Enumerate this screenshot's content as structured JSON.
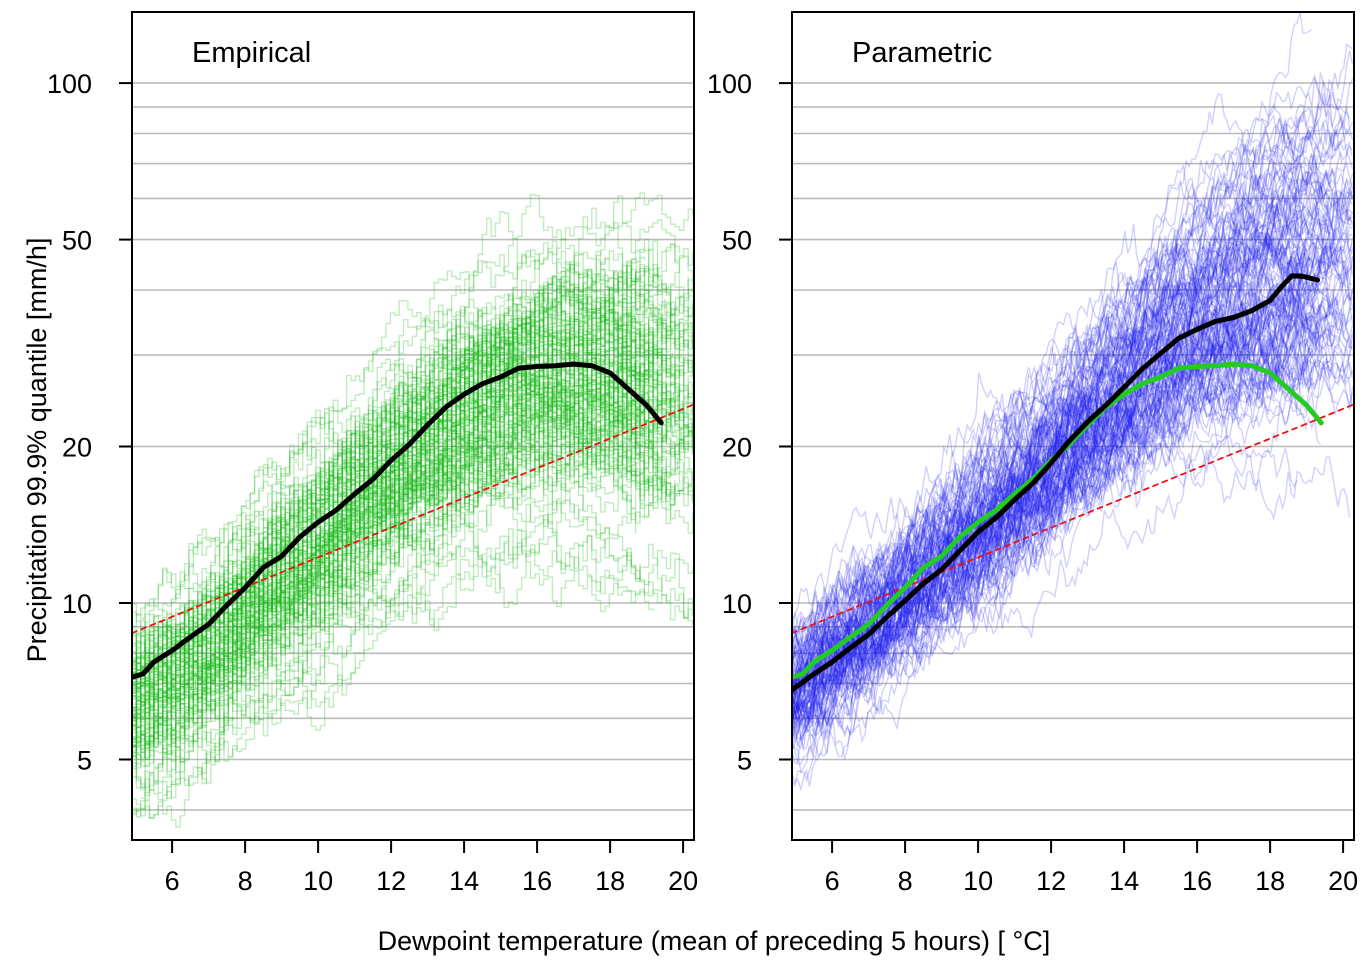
{
  "figure": {
    "xlabel": "Dewpoint temperature (mean of preceding 5 hours)  [ °C]",
    "ylabel": "Precipitation  99.9% quantile  [mm/h]"
  },
  "colors": {
    "empirical_ensemble": "#22bb22",
    "parametric_ensemble": "#1a1aee",
    "observed": "#000000",
    "empirical_overlay": "#22cc22",
    "reference": "#ee1111",
    "grid": "#bbbbbb"
  },
  "chart_data": [
    {
      "type": "line",
      "title": "Empirical",
      "xlim": [
        4.9,
        20.3
      ],
      "ylim": [
        3.5,
        137
      ],
      "yscale": "log",
      "x_ticks": [
        6,
        8,
        10,
        12,
        14,
        16,
        18,
        20
      ],
      "y_ticks": [
        5,
        10,
        20,
        50,
        100
      ],
      "y_gridlines": [
        4,
        5,
        6,
        7,
        8,
        9,
        10,
        20,
        30,
        40,
        50,
        60,
        70,
        80,
        90,
        100
      ],
      "series": [
        {
          "name": "observed",
          "color": "#000000",
          "x": [
            4.9,
            5.2,
            5.5,
            6.0,
            6.5,
            7.0,
            7.5,
            8.0,
            8.5,
            9.0,
            9.5,
            10.0,
            10.5,
            11.0,
            11.5,
            12.0,
            12.5,
            13.0,
            13.5,
            14.0,
            14.5,
            15.0,
            15.5,
            16.0,
            16.5,
            17.0,
            17.5,
            18.0,
            18.5,
            19.0,
            19.4
          ],
          "y": [
            7.2,
            7.3,
            7.7,
            8.1,
            8.6,
            9.1,
            9.9,
            10.7,
            11.7,
            12.3,
            13.4,
            14.3,
            15.1,
            16.2,
            17.3,
            18.8,
            20.2,
            22.0,
            23.8,
            25.2,
            26.4,
            27.2,
            28.3,
            28.5,
            28.6,
            28.8,
            28.6,
            27.7,
            25.8,
            24.0,
            22.2
          ]
        },
        {
          "name": "reference",
          "color": "#ee1111",
          "style": "dashed",
          "x": [
            4.9,
            20.3
          ],
          "y": [
            8.75,
            24.1
          ]
        },
        {
          "name": "ensemble",
          "color": "#22bb22",
          "members": 140,
          "x": [
            4.9,
            6.0,
            7.0,
            8.0,
            9.0,
            10.0,
            11.0,
            12.0,
            13.0,
            14.0,
            15.0,
            16.0,
            17.0,
            18.0,
            19.0,
            20.3
          ],
          "y_median": [
            6.3,
            7.0,
            8.0,
            9.4,
            10.9,
            12.6,
            14.8,
            17.2,
            19.8,
            22.5,
            24.6,
            26.0,
            26.5,
            26.0,
            25.0,
            24.0
          ],
          "spread_log_sd": [
            0.16,
            0.16,
            0.17,
            0.18,
            0.19,
            0.2,
            0.21,
            0.22,
            0.23,
            0.25,
            0.26,
            0.27,
            0.28,
            0.3,
            0.32,
            0.34
          ]
        }
      ]
    },
    {
      "type": "line",
      "title": "Parametric",
      "xlim": [
        4.9,
        20.3
      ],
      "ylim": [
        3.5,
        137
      ],
      "yscale": "log",
      "x_ticks": [
        6,
        8,
        10,
        12,
        14,
        16,
        18,
        20
      ],
      "y_ticks": [
        5,
        10,
        20,
        50,
        100
      ],
      "y_gridlines": [
        4,
        5,
        6,
        7,
        8,
        9,
        10,
        20,
        30,
        40,
        50,
        60,
        70,
        80,
        90,
        100
      ],
      "series": [
        {
          "name": "observed",
          "color": "#000000",
          "x": [
            4.9,
            5.5,
            6.0,
            6.5,
            7.0,
            7.5,
            8.0,
            8.5,
            9.0,
            9.5,
            10.0,
            10.5,
            11.0,
            11.5,
            12.0,
            12.5,
            13.0,
            13.5,
            14.0,
            14.5,
            15.0,
            15.5,
            16.0,
            16.5,
            17.0,
            17.5,
            18.0,
            18.3,
            18.6,
            18.9,
            19.3
          ],
          "y": [
            6.8,
            7.3,
            7.7,
            8.2,
            8.7,
            9.4,
            10.1,
            10.9,
            11.6,
            12.6,
            13.7,
            14.6,
            15.8,
            17.0,
            18.6,
            20.5,
            22.3,
            24.0,
            26.0,
            28.2,
            30.2,
            32.3,
            33.6,
            34.8,
            35.4,
            36.5,
            38.2,
            40.5,
            42.6,
            42.5,
            41.8
          ]
        },
        {
          "name": "empirical",
          "color": "#22cc22",
          "x": [
            4.9,
            5.2,
            5.5,
            6.0,
            6.5,
            7.0,
            7.5,
            8.0,
            8.5,
            9.0,
            9.5,
            10.0,
            10.5,
            11.0,
            11.5,
            12.0,
            12.5,
            13.0,
            13.5,
            14.0,
            14.5,
            15.0,
            15.5,
            16.0,
            16.5,
            17.0,
            17.5,
            18.0,
            18.5,
            19.0,
            19.4
          ],
          "y": [
            7.2,
            7.3,
            7.7,
            8.1,
            8.6,
            9.1,
            9.9,
            10.7,
            11.7,
            12.3,
            13.4,
            14.3,
            15.1,
            16.2,
            17.3,
            18.8,
            20.2,
            22.0,
            23.8,
            25.2,
            26.4,
            27.2,
            28.3,
            28.5,
            28.6,
            28.8,
            28.6,
            27.7,
            25.8,
            24.0,
            22.2
          ]
        },
        {
          "name": "reference",
          "color": "#ee1111",
          "style": "dashed",
          "x": [
            4.9,
            20.3
          ],
          "y": [
            8.75,
            24.1
          ]
        },
        {
          "name": "ensemble",
          "color": "#1a1aee",
          "members": 140,
          "x": [
            4.9,
            6.0,
            7.0,
            8.0,
            9.0,
            10.0,
            11.0,
            12.0,
            13.0,
            14.0,
            15.0,
            16.0,
            17.0,
            18.0,
            19.0,
            20.3
          ],
          "y_median": [
            6.5,
            7.6,
            8.7,
            10.0,
            11.5,
            13.3,
            15.4,
            18.0,
            21.0,
            24.5,
            28.3,
            32.0,
            35.3,
            38.5,
            41.0,
            43.0
          ],
          "spread_log_sd": [
            0.13,
            0.13,
            0.14,
            0.14,
            0.15,
            0.16,
            0.17,
            0.18,
            0.2,
            0.22,
            0.24,
            0.27,
            0.3,
            0.33,
            0.36,
            0.38
          ]
        }
      ]
    }
  ]
}
